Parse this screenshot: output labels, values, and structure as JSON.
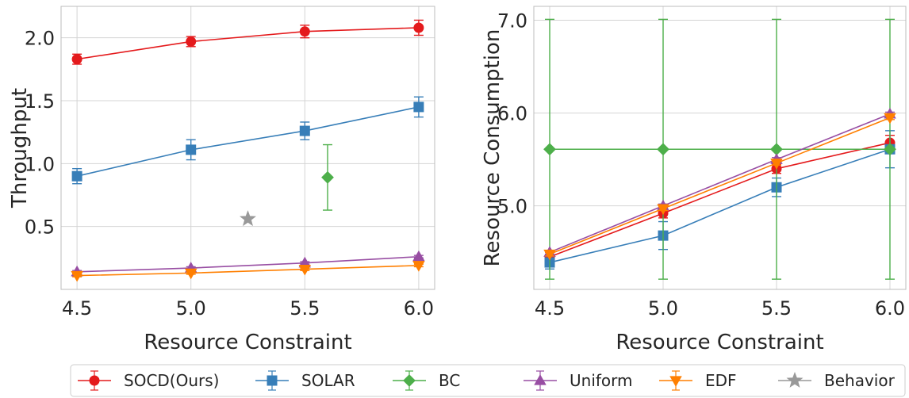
{
  "chart_data": [
    {
      "type": "line",
      "xlabel": "Resource Constraint",
      "ylabel": "Throughput",
      "xlim": [
        4.43,
        6.07
      ],
      "ylim": [
        0.0,
        2.25
      ],
      "xticks": [
        "4.5",
        "5.0",
        "5.5",
        "6.0"
      ],
      "yticks": [
        "0.5",
        "1.0",
        "1.5",
        "2.0"
      ],
      "grid": true,
      "series": [
        {
          "name": "SOCD(Ours)",
          "color": "#e41a1c",
          "marker": "circle",
          "points": [
            {
              "x": 4.5,
              "y": 1.83,
              "err": 0.04
            },
            {
              "x": 5.0,
              "y": 1.97,
              "err": 0.04
            },
            {
              "x": 5.5,
              "y": 2.05,
              "err": 0.05
            },
            {
              "x": 6.0,
              "y": 2.08,
              "err": 0.06
            }
          ]
        },
        {
          "name": "SOLAR",
          "color": "#377eb8",
          "marker": "square",
          "points": [
            {
              "x": 4.5,
              "y": 0.9,
              "err": 0.06
            },
            {
              "x": 5.0,
              "y": 1.11,
              "err": 0.08
            },
            {
              "x": 5.5,
              "y": 1.26,
              "err": 0.07
            },
            {
              "x": 6.0,
              "y": 1.45,
              "err": 0.08
            }
          ]
        },
        {
          "name": "BC",
          "color": "#4daf4a",
          "marker": "diamond",
          "points": [
            {
              "x": 5.6,
              "y": 0.89,
              "err": 0.26
            }
          ]
        },
        {
          "name": "Uniform",
          "color": "#984ea3",
          "marker": "triangle-up",
          "points": [
            {
              "x": 4.5,
              "y": 0.14,
              "err": 0.01
            },
            {
              "x": 5.0,
              "y": 0.17,
              "err": 0.01
            },
            {
              "x": 5.5,
              "y": 0.21,
              "err": 0.01
            },
            {
              "x": 6.0,
              "y": 0.26,
              "err": 0.01
            }
          ]
        },
        {
          "name": "EDF",
          "color": "#ff7f00",
          "marker": "triangle-down",
          "points": [
            {
              "x": 4.5,
              "y": 0.11,
              "err": 0.01
            },
            {
              "x": 5.0,
              "y": 0.13,
              "err": 0.01
            },
            {
              "x": 5.5,
              "y": 0.16,
              "err": 0.01
            },
            {
              "x": 6.0,
              "y": 0.19,
              "err": 0.01
            }
          ]
        },
        {
          "name": "Behavior",
          "color": "#999999",
          "marker": "star",
          "points": [
            {
              "x": 5.25,
              "y": 0.56,
              "err": 0
            }
          ]
        }
      ]
    },
    {
      "type": "line",
      "xlabel": "Resource Constraint",
      "ylabel": "Resource Consumption",
      "xlim": [
        4.43,
        6.07
      ],
      "ylim": [
        4.1,
        7.15
      ],
      "xticks": [
        "4.5",
        "5.0",
        "5.5",
        "6.0"
      ],
      "yticks": [
        "5.0",
        "6.0",
        "7.0"
      ],
      "grid": true,
      "series": [
        {
          "name": "SOCD(Ours)",
          "color": "#e41a1c",
          "marker": "circle",
          "points": [
            {
              "x": 4.5,
              "y": 4.45,
              "err": 0.05
            },
            {
              "x": 5.0,
              "y": 4.92,
              "err": 0.05
            },
            {
              "x": 5.5,
              "y": 5.4,
              "err": 0.05
            },
            {
              "x": 6.0,
              "y": 5.68,
              "err": 0.08
            }
          ]
        },
        {
          "name": "SOLAR",
          "color": "#377eb8",
          "marker": "square",
          "points": [
            {
              "x": 4.5,
              "y": 4.39,
              "err": 0.07
            },
            {
              "x": 5.0,
              "y": 4.68,
              "err": 0.15
            },
            {
              "x": 5.5,
              "y": 5.2,
              "err": 0.1
            },
            {
              "x": 6.0,
              "y": 5.61,
              "err": 0.2
            }
          ]
        },
        {
          "name": "BC",
          "color": "#4daf4a",
          "marker": "diamond",
          "points": [
            {
              "x": 4.5,
              "y": 5.61,
              "err": 1.4
            },
            {
              "x": 5.0,
              "y": 5.61,
              "err": 1.4
            },
            {
              "x": 5.5,
              "y": 5.61,
              "err": 1.4
            },
            {
              "x": 6.0,
              "y": 5.61,
              "err": 1.4
            }
          ]
        },
        {
          "name": "Uniform",
          "color": "#984ea3",
          "marker": "triangle-up",
          "points": [
            {
              "x": 4.5,
              "y": 4.5,
              "err": 0.02
            },
            {
              "x": 5.0,
              "y": 5.0,
              "err": 0.02
            },
            {
              "x": 5.5,
              "y": 5.5,
              "err": 0.02
            },
            {
              "x": 6.0,
              "y": 5.99,
              "err": 0.02
            }
          ]
        },
        {
          "name": "EDF",
          "color": "#ff7f00",
          "marker": "triangle-down",
          "points": [
            {
              "x": 4.5,
              "y": 4.48,
              "err": 0.02
            },
            {
              "x": 5.0,
              "y": 4.97,
              "err": 0.02
            },
            {
              "x": 5.5,
              "y": 5.46,
              "err": 0.02
            },
            {
              "x": 6.0,
              "y": 5.95,
              "err": 0.02
            }
          ]
        }
      ]
    }
  ],
  "legend": {
    "placement": "bottom-center",
    "entries": [
      {
        "label": "SOCD(Ours)",
        "color": "#e41a1c",
        "marker": "circle"
      },
      {
        "label": "SOLAR",
        "color": "#377eb8",
        "marker": "square"
      },
      {
        "label": "BC",
        "color": "#4daf4a",
        "marker": "diamond"
      },
      {
        "label": "Uniform",
        "color": "#984ea3",
        "marker": "triangle-up"
      },
      {
        "label": "EDF",
        "color": "#ff7f00",
        "marker": "triangle-down"
      },
      {
        "label": "Behavior",
        "color": "#999999",
        "marker": "star"
      }
    ]
  }
}
